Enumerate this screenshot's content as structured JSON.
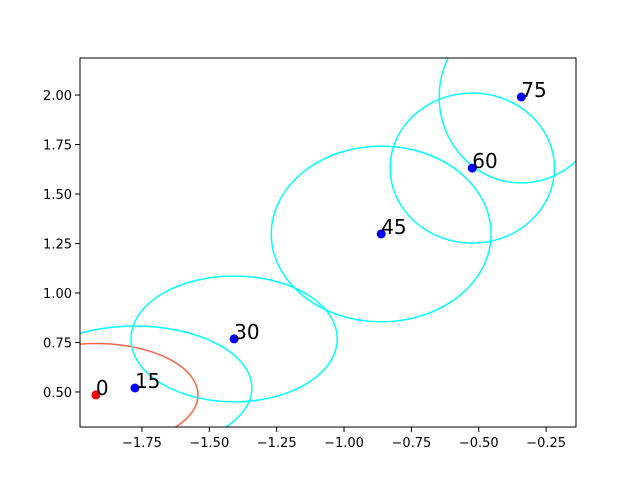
{
  "chart_data": {
    "type": "scatter",
    "xlim": [
      -1.98,
      -0.139
    ],
    "ylim": [
      0.323,
      2.187
    ],
    "xticks": [
      {
        "value": -1.75,
        "label": "−1.75"
      },
      {
        "value": -1.5,
        "label": "−1.50"
      },
      {
        "value": -1.25,
        "label": "−1.25"
      },
      {
        "value": -1.0,
        "label": "−1.00"
      },
      {
        "value": -0.75,
        "label": "−0.75"
      },
      {
        "value": -0.5,
        "label": "−0.50"
      },
      {
        "value": -0.25,
        "label": "−0.25"
      }
    ],
    "yticks": [
      {
        "value": 0.5,
        "label": "0.50"
      },
      0.75,
      {
        "value": 1.0,
        "label": "1.00"
      },
      1.25,
      {
        "value": 1.5,
        "label": "1.50"
      },
      1.75,
      {
        "value": 2.0,
        "label": "2.00"
      }
    ],
    "points": [
      {
        "label": "0",
        "x": -1.921,
        "y": 0.485,
        "color": "#ff0000",
        "rx": 0.379,
        "ry": 0.26,
        "ring_color": "#ff6347"
      },
      {
        "label": "15",
        "x": -1.776,
        "y": 0.52,
        "color": "#0000ff",
        "rx": 0.434,
        "ry": 0.313,
        "ring_color": "#00ffff"
      },
      {
        "label": "30",
        "x": -1.408,
        "y": 0.768,
        "color": "#0000ff",
        "rx": 0.383,
        "ry": 0.318,
        "ring_color": "#00ffff"
      },
      {
        "label": "45",
        "x": -0.862,
        "y": 1.298,
        "color": "#0000ff",
        "rx": 0.408,
        "ry": 0.444,
        "ring_color": "#00ffff"
      },
      {
        "label": "60",
        "x": -0.524,
        "y": 1.631,
        "color": "#0000ff",
        "rx": 0.305,
        "ry": 0.379,
        "ring_color": "#00ffff"
      },
      {
        "label": "75",
        "x": -0.342,
        "y": 1.99,
        "color": "#0000ff",
        "rx": 0.305,
        "ry": 0.434,
        "ring_color": "#00ffff"
      }
    ]
  }
}
